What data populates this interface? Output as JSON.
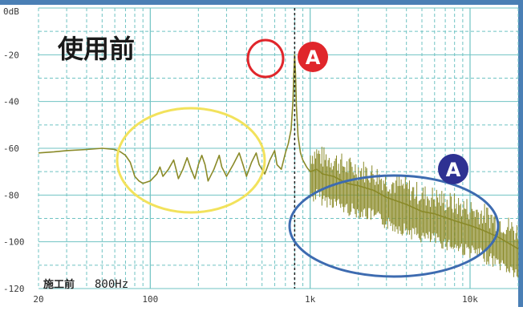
{
  "window": {
    "border_color": "#4a7fb5"
  },
  "overlay": {
    "title": "使用前",
    "badge_red_label": "A",
    "badge_blue_label": "A",
    "note": "施工前",
    "note_freq": "800Hz"
  },
  "colors": {
    "trace": "#8a8a28",
    "grid": "#6fc3c3",
    "marker": "#222222",
    "red": "#e0262b",
    "yellow": "#f2e25c",
    "blue": "#3d6bb0",
    "navy": "#2e3192",
    "axis_text": "#3a3a3a"
  },
  "chart_data": {
    "type": "line",
    "title": "",
    "xlabel": "",
    "ylabel": "",
    "x_scale": "log",
    "xlim": [
      20,
      20000
    ],
    "ylim": [
      -120,
      0
    ],
    "x_tick_labels": [
      {
        "value": 20,
        "label": "20"
      },
      {
        "value": 100,
        "label": "100"
      },
      {
        "value": 1000,
        "label": "1k"
      },
      {
        "value": 10000,
        "label": "10k"
      }
    ],
    "y_tick_labels": [
      {
        "value": 0,
        "label": "0dB"
      },
      {
        "value": -20,
        "label": "-20"
      },
      {
        "value": -40,
        "label": "-40"
      },
      {
        "value": -60,
        "label": "-60"
      },
      {
        "value": -80,
        "label": "-80"
      },
      {
        "value": -100,
        "label": "-100"
      },
      {
        "value": -120,
        "label": "-120"
      }
    ],
    "grid": true,
    "marker_frequency": 800,
    "series": [
      {
        "points": [
          [
            20,
            -62
          ],
          [
            25,
            -61.5
          ],
          [
            30,
            -61
          ],
          [
            40,
            -60.5
          ],
          [
            50,
            -60
          ],
          [
            60,
            -60.5
          ],
          [
            65,
            -61.5
          ],
          [
            70,
            -63
          ],
          [
            75,
            -66
          ],
          [
            80,
            -72
          ],
          [
            85,
            -74
          ],
          [
            90,
            -75
          ],
          [
            100,
            -74
          ],
          [
            110,
            -71
          ],
          [
            115,
            -68
          ],
          [
            120,
            -72
          ],
          [
            130,
            -69
          ],
          [
            140,
            -65
          ],
          [
            145,
            -69
          ],
          [
            150,
            -73
          ],
          [
            160,
            -69
          ],
          [
            170,
            -64
          ],
          [
            180,
            -69
          ],
          [
            190,
            -73
          ],
          [
            200,
            -67
          ],
          [
            210,
            -63
          ],
          [
            220,
            -67
          ],
          [
            230,
            -74
          ],
          [
            250,
            -69
          ],
          [
            270,
            -63
          ],
          [
            280,
            -68
          ],
          [
            300,
            -72
          ],
          [
            330,
            -67
          ],
          [
            360,
            -62
          ],
          [
            380,
            -67
          ],
          [
            400,
            -72
          ],
          [
            430,
            -66
          ],
          [
            460,
            -62
          ],
          [
            480,
            -67
          ],
          [
            520,
            -71
          ],
          [
            560,
            -65
          ],
          [
            600,
            -61
          ],
          [
            620,
            -67
          ],
          [
            660,
            -69
          ],
          [
            700,
            -62
          ],
          [
            730,
            -58
          ],
          [
            760,
            -52
          ],
          [
            780,
            -40
          ],
          [
            790,
            -28
          ],
          [
            800,
            -20
          ],
          [
            810,
            -28
          ],
          [
            820,
            -42
          ],
          [
            840,
            -55
          ],
          [
            870,
            -62
          ],
          [
            900,
            -65
          ],
          [
            950,
            -68
          ],
          [
            1000,
            -70
          ],
          [
            1100,
            -69
          ],
          [
            1200,
            -71
          ],
          [
            1400,
            -72
          ],
          [
            1700,
            -75
          ],
          [
            2000,
            -76
          ],
          [
            2500,
            -78
          ],
          [
            3000,
            -81
          ],
          [
            4000,
            -84
          ],
          [
            5000,
            -87
          ],
          [
            6000,
            -88
          ],
          [
            8000,
            -91
          ],
          [
            10000,
            -93
          ],
          [
            12000,
            -95
          ],
          [
            15000,
            -98
          ],
          [
            20000,
            -103
          ]
        ]
      }
    ]
  }
}
